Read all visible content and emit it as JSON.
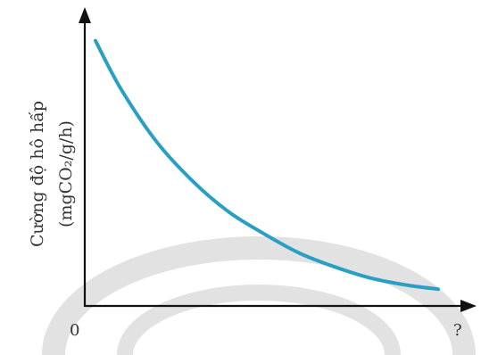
{
  "chart_data": {
    "type": "line",
    "title": "",
    "ylabel_line1": "Cường độ hô hấp",
    "ylabel_line2": "(mgCO₂/g/h)",
    "xlabel": "?",
    "origin_label": "0",
    "xlim": [
      0,
      10
    ],
    "ylim": [
      0,
      10
    ],
    "grid": false,
    "legend": "none",
    "series": [
      {
        "color": "#2a9fc4",
        "x": [
          0.3,
          1.0,
          2.0,
          3.0,
          4.0,
          5.0,
          6.0,
          7.0,
          8.0,
          9.0,
          9.9
        ],
        "y": [
          9.5,
          7.8,
          5.9,
          4.5,
          3.4,
          2.6,
          1.9,
          1.4,
          1.0,
          0.75,
          0.6
        ]
      }
    ],
    "axis_color": "#111111",
    "watermark_color": "#e2e2e2"
  }
}
